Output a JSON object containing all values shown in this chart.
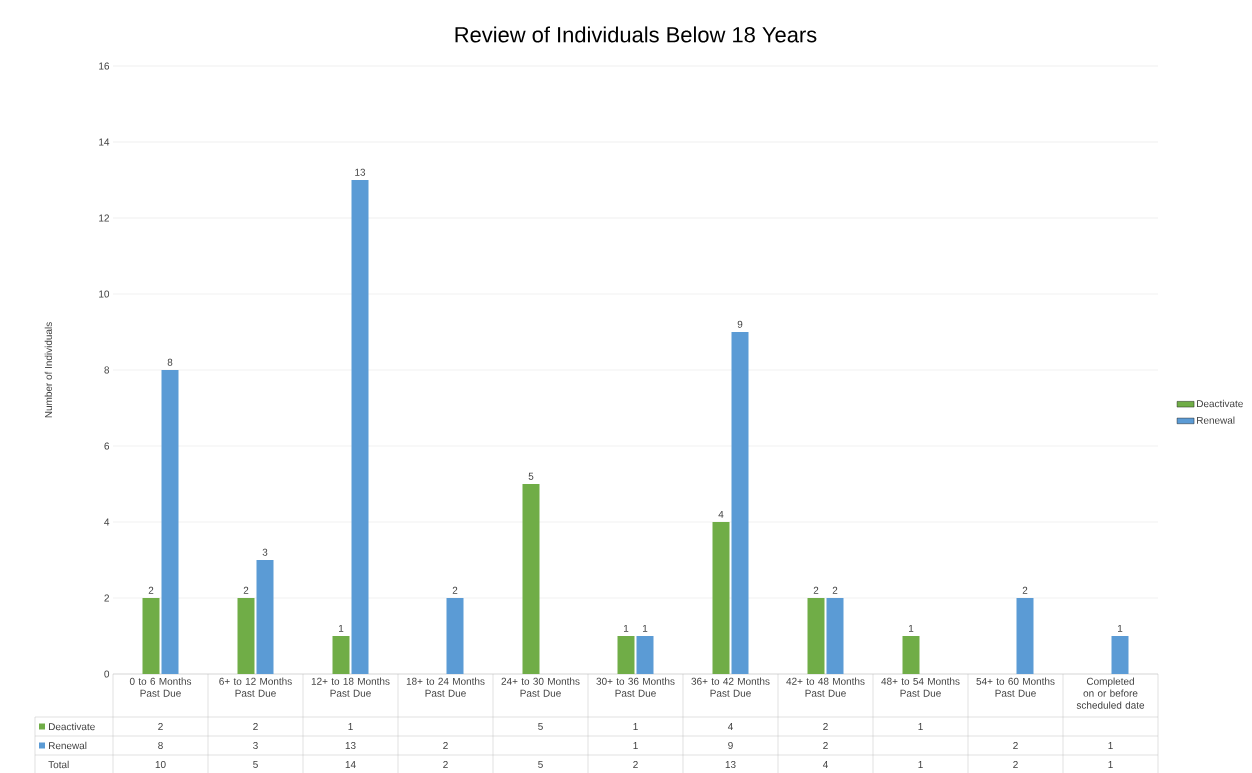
{
  "chart_data": {
    "type": "bar",
    "title": "Review of Individuals Below 18 Years",
    "ylabel": "Number of Individuals",
    "categories": [
      "0 to 6 Months Past Due",
      "6+ to 12 Months Past Due",
      "12+ to 18 Months Past Due",
      "18+ to 24 Months Past Due",
      "24+ to 30 Months Past Due",
      "30+ to 36 Months Past Due",
      "36+ to 42 Months Past Due",
      "42+ to 48 Months Past Due",
      "48+ to 54 Months Past Due",
      "54+ to 60 Months Past Due",
      "Completed on or before scheduled date"
    ],
    "series": [
      {
        "name": "Deactivate",
        "color": "#70ad47",
        "values": [
          2,
          2,
          1,
          null,
          5,
          1,
          4,
          2,
          1,
          null,
          null
        ]
      },
      {
        "name": "Renewal",
        "color": "#5b9bd5",
        "values": [
          8,
          3,
          13,
          2,
          null,
          1,
          9,
          2,
          null,
          2,
          1
        ]
      }
    ],
    "annotations": [
      "Total",
      "2",
      "2",
      "1",
      "5",
      "1",
      "4",
      "2",
      "1",
      "8",
      "3",
      "13",
      "2",
      "1",
      "9",
      "2",
      "2",
      "1",
      "10",
      "5",
      "14",
      "2",
      "5",
      "2",
      "13",
      "4",
      "1",
      "2",
      "1"
    ],
    "ylim": [
      0,
      16
    ],
    "yticks": [
      0,
      2,
      4,
      6,
      8,
      10,
      12,
      14,
      16
    ],
    "grid": "y",
    "legend": "right",
    "data_labels": true
  }
}
